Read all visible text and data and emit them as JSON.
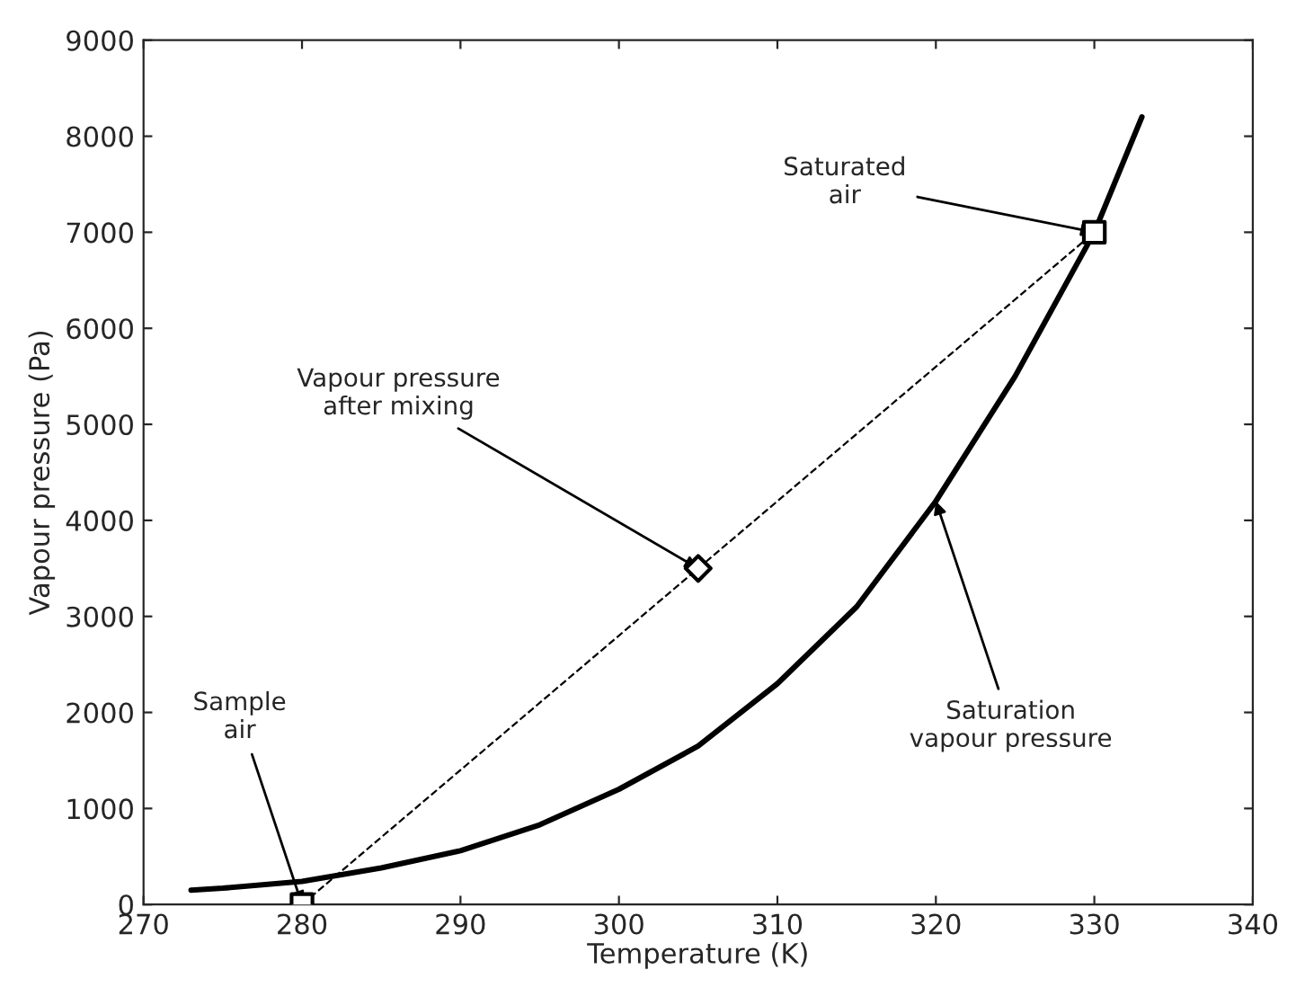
{
  "chart_data": {
    "type": "line",
    "xlabel": "Temperature (K)",
    "ylabel": "Vapour pressure (Pa)",
    "xlim": [
      270,
      340
    ],
    "xticks": [
      270,
      280,
      290,
      300,
      310,
      320,
      330,
      340
    ],
    "ylim": [
      0,
      9000
    ],
    "yticks": [
      0,
      1000,
      2000,
      3000,
      4000,
      5000,
      6000,
      7000,
      8000,
      9000
    ],
    "grid": false,
    "legend": false,
    "series": [
      {
        "color": "#000000",
        "line_style": "solid",
        "marker": "none",
        "x": [
          273,
          275,
          280,
          285,
          290,
          295,
          300,
          305,
          310,
          315,
          320,
          325,
          330,
          333
        ],
        "values": [
          150,
          170,
          240,
          380,
          560,
          830,
          1200,
          1650,
          2300,
          3100,
          4200,
          5500,
          7000,
          8200
        ]
      },
      {
        "type": "line",
        "color": "#000000",
        "line_style": "dashed",
        "marker": "none",
        "x": [
          280,
          330
        ],
        "values": [
          0,
          7000
        ]
      },
      {
        "type": "scatter",
        "color": "#000000",
        "marker": "square",
        "x": [
          280,
          330
        ],
        "values": [
          0,
          7000
        ]
      },
      {
        "type": "scatter",
        "color": "#000000",
        "marker": "diamond",
        "x": [
          305
        ],
        "values": [
          3500
        ]
      }
    ],
    "annotations": [
      {
        "text": "Saturated\nair",
        "x": 330,
        "y": 7000
      },
      {
        "text": "Vapour pressure\nafter mixing",
        "x": 305,
        "y": 3500
      },
      {
        "text": "Sample\nair",
        "x": 280,
        "y": 0
      },
      {
        "text": "Saturation\nvapour pressure",
        "x": 320,
        "y": 4200
      }
    ]
  }
}
